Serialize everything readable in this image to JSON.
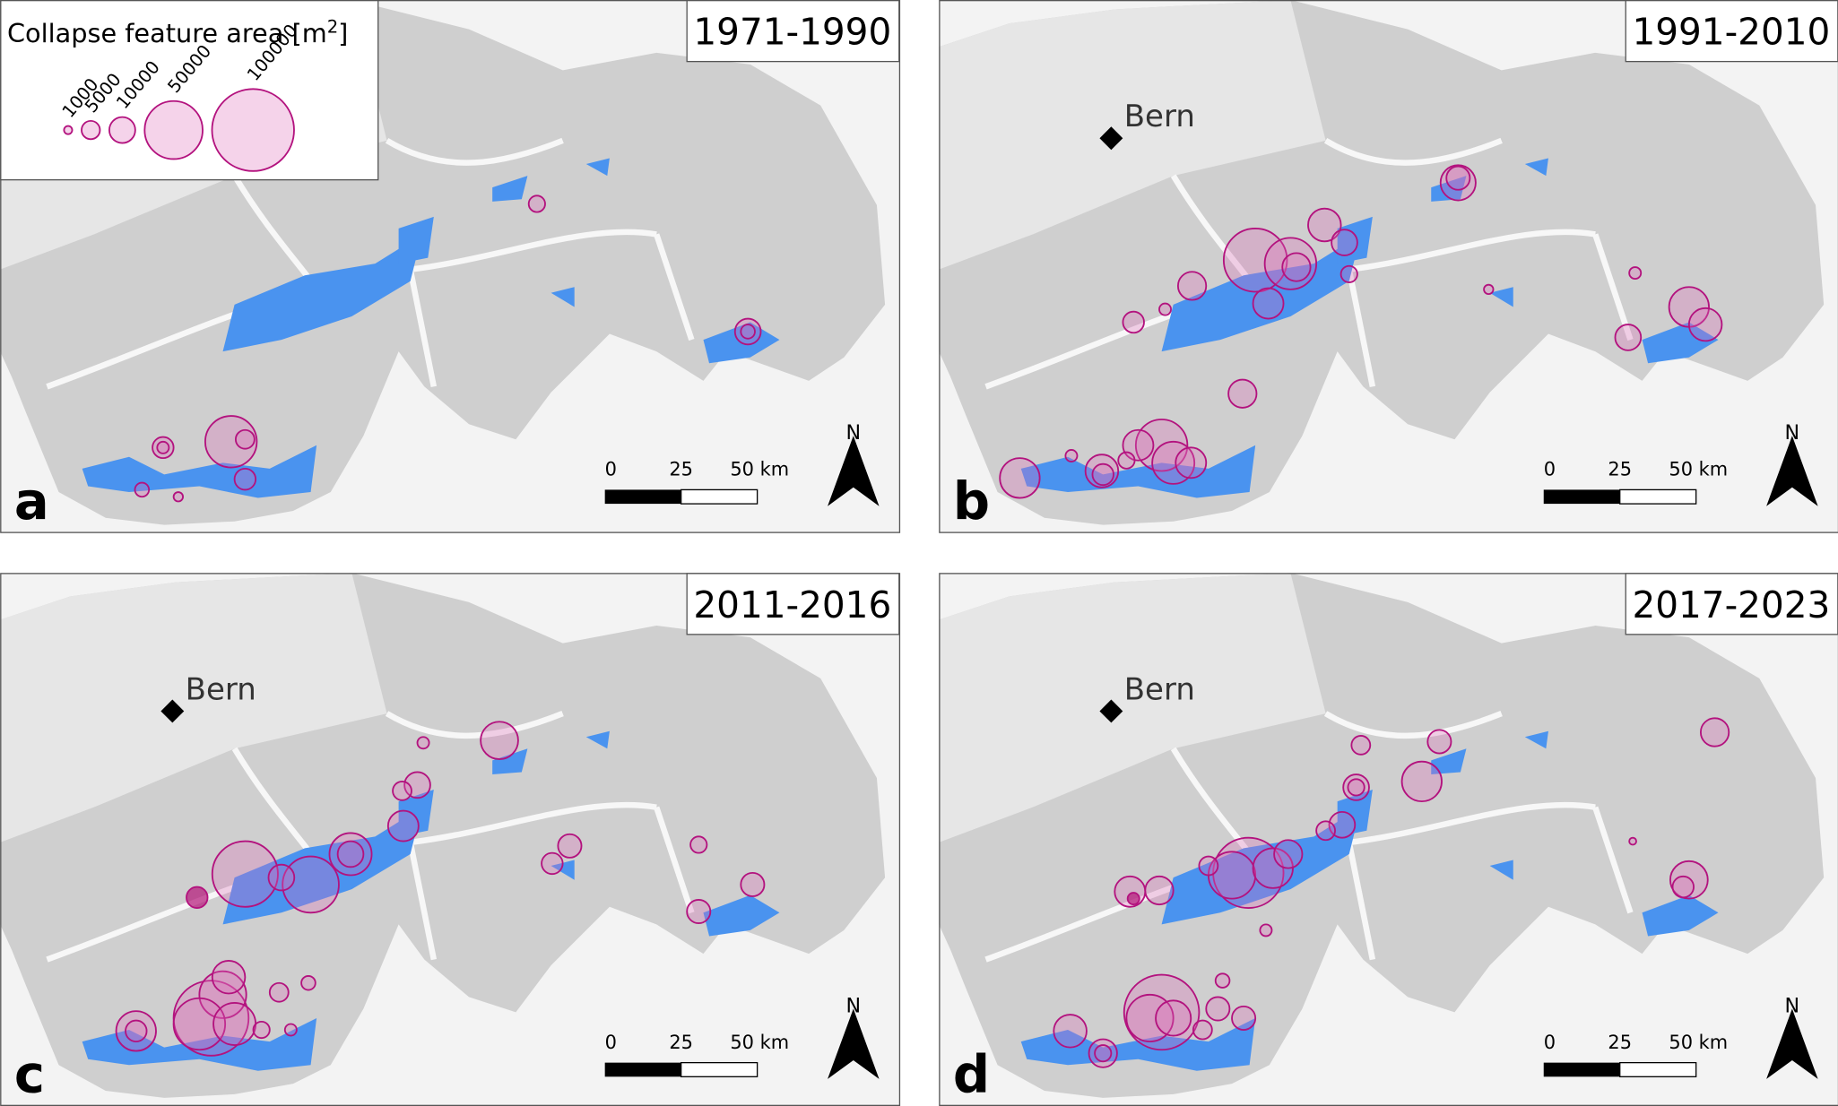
{
  "legend": {
    "title": "Collapse feature area [m",
    "title_sup": "2",
    "title_end": "]",
    "sizes": [
      1000,
      5000,
      10000,
      50000,
      100000
    ]
  },
  "panels": [
    {
      "letter": "a",
      "period": "1971-1990"
    },
    {
      "letter": "b",
      "period": "1991-2010",
      "city": "Bern"
    },
    {
      "letter": "c",
      "period": "2011-2016",
      "city": "Bern"
    },
    {
      "letter": "d",
      "period": "2017-2023",
      "city": "Bern"
    }
  ],
  "scale_bar": [
    "0",
    "25",
    "50 km"
  ],
  "north": "N"
}
